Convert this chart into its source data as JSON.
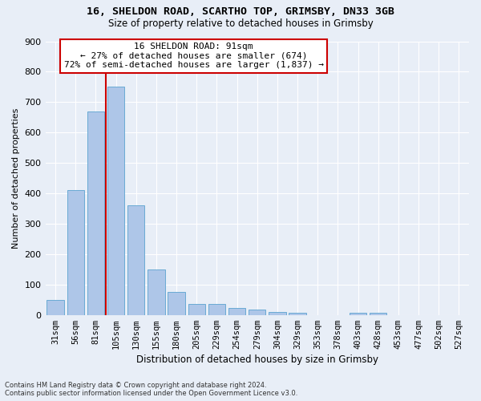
{
  "title_line1": "16, SHELDON ROAD, SCARTHO TOP, GRIMSBY, DN33 3GB",
  "title_line2": "Size of property relative to detached houses in Grimsby",
  "xlabel": "Distribution of detached houses by size in Grimsby",
  "ylabel": "Number of detached properties",
  "footnote": "Contains HM Land Registry data © Crown copyright and database right 2024.\nContains public sector information licensed under the Open Government Licence v3.0.",
  "bar_labels": [
    "31sqm",
    "56sqm",
    "81sqm",
    "105sqm",
    "130sqm",
    "155sqm",
    "180sqm",
    "205sqm",
    "229sqm",
    "254sqm",
    "279sqm",
    "304sqm",
    "329sqm",
    "353sqm",
    "378sqm",
    "403sqm",
    "428sqm",
    "453sqm",
    "477sqm",
    "502sqm",
    "527sqm"
  ],
  "bar_values": [
    50,
    410,
    670,
    750,
    360,
    150,
    75,
    35,
    35,
    22,
    17,
    9,
    7,
    0,
    0,
    8,
    7,
    0,
    0,
    0,
    0
  ],
  "bar_color": "#aec6e8",
  "bar_edge_color": "#6aaad4",
  "annotation_text1": "16 SHELDON ROAD: 91sqm",
  "annotation_text2": "← 27% of detached houses are smaller (674)",
  "annotation_text3": "72% of semi-detached houses are larger (1,837) →",
  "vline_color": "#cc0000",
  "box_color": "#cc0000",
  "ylim": [
    0,
    900
  ],
  "yticks": [
    0,
    100,
    200,
    300,
    400,
    500,
    600,
    700,
    800,
    900
  ],
  "background_color": "#e8eef7",
  "grid_color": "#ffffff",
  "title_fontsize": 9.5,
  "subtitle_fontsize": 8.5,
  "ylabel_fontsize": 8,
  "xlabel_fontsize": 8.5,
  "tick_fontsize": 7.5,
  "footnote_fontsize": 6.0
}
